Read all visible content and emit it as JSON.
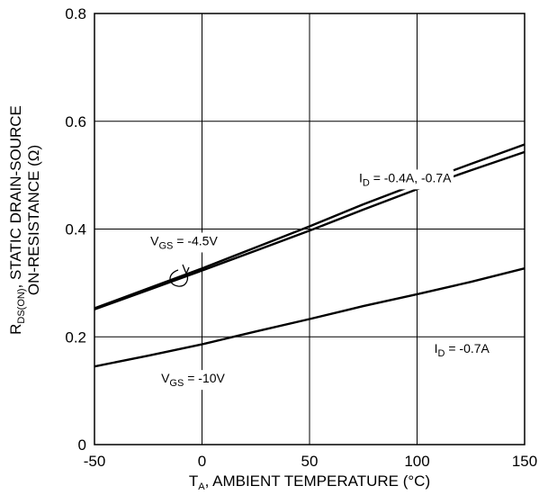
{
  "chart_data": {
    "type": "line",
    "title": "",
    "xlabel": {
      "main": "T",
      "sub": "A",
      "rest": ", AMBIENT TEMPERATURE (°C)"
    },
    "ylabel": {
      "line1": {
        "main": "R",
        "sub": "DS(ON)",
        "rest": ", STATIC DRAIN-SOURCE"
      },
      "line2": "ON-RESISTANCE (Ω)"
    },
    "xlim": [
      -50,
      150
    ],
    "ylim": [
      0,
      0.8
    ],
    "x_ticks": [
      "-50",
      "0",
      "50",
      "100",
      "150"
    ],
    "y_ticks": [
      "0",
      "0.2",
      "0.4",
      "0.6",
      "0.8"
    ],
    "grid": true,
    "series": [
      {
        "x": [
          -50,
          -25,
          0,
          25,
          50,
          75,
          100,
          125,
          150
        ],
        "y": [
          0.253,
          0.29,
          0.327,
          0.366,
          0.405,
          0.446,
          0.484,
          0.521,
          0.557
        ]
      },
      {
        "x": [
          -50,
          -25,
          0,
          25,
          50,
          75,
          100,
          125,
          150
        ],
        "y": [
          0.251,
          0.287,
          0.323,
          0.36,
          0.397,
          0.436,
          0.474,
          0.509,
          0.543
        ]
      },
      {
        "x": [
          -50,
          -25,
          0,
          25,
          50,
          75,
          100,
          125,
          150
        ],
        "y": [
          0.145,
          0.165,
          0.186,
          0.21,
          0.233,
          0.257,
          0.279,
          0.302,
          0.327
        ]
      }
    ],
    "annotations": [
      {
        "main": "I",
        "sub": "D",
        "rest": " = -0.4A, -0.7A",
        "x": 73,
        "y": 0.487
      },
      {
        "main": "V",
        "sub": "GS",
        "rest": " = -4.5V",
        "x": -24,
        "y": 0.37
      },
      {
        "main": "I",
        "sub": "D",
        "rest": " = -0.7A",
        "x": 108,
        "y": 0.17
      },
      {
        "main": "V",
        "sub": "GS",
        "rest": " = -10V",
        "x": -19,
        "y": 0.115
      }
    ]
  }
}
